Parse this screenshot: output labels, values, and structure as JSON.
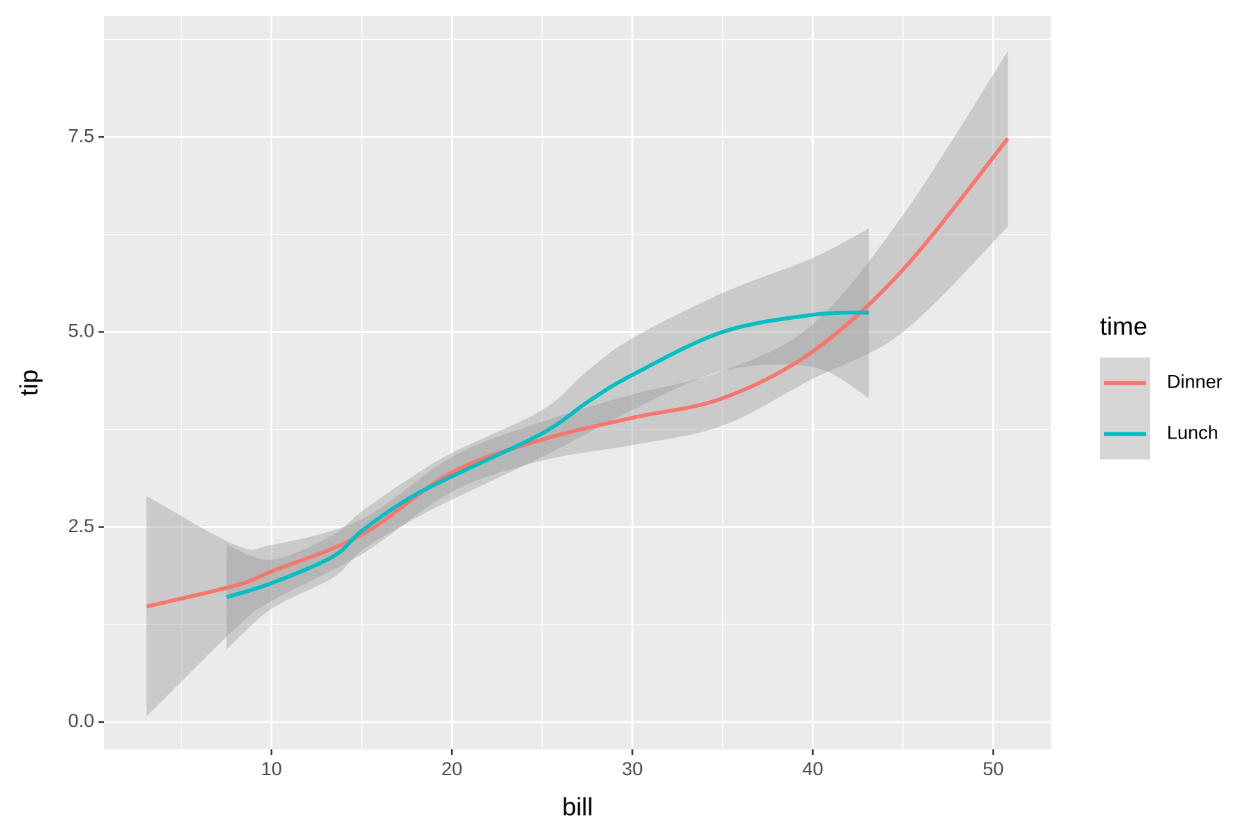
{
  "chart_data": {
    "type": "smooth",
    "x_label": "bill",
    "y_label": "tip",
    "legend_title": "time",
    "legend": "right",
    "grid": true,
    "xlim": [
      0.72,
      53.2
    ],
    "ylim": [
      -0.35,
      9.05
    ],
    "xticks": [
      10,
      20,
      30,
      40,
      50
    ],
    "yticks": [
      {
        "value": 0,
        "label": "0.0"
      },
      2.5,
      {
        "value": 5,
        "label": "5.0"
      },
      7.5
    ],
    "band_color": "#999999",
    "series": [
      {
        "name": "Dinner",
        "color": "#f8766d",
        "x": [
          3.07,
          8,
          10,
          15,
          20,
          25,
          30,
          35,
          40,
          45,
          50.81
        ],
        "values": [
          1.48,
          1.75,
          1.93,
          2.4,
          3.2,
          3.62,
          3.9,
          4.15,
          4.75,
          5.8,
          7.48
        ],
        "lower": [
          0.07,
          1.2,
          1.55,
          2.15,
          2.95,
          3.35,
          3.55,
          3.8,
          4.4,
          5.0,
          6.35
        ],
        "upper": [
          2.9,
          2.27,
          2.27,
          2.6,
          3.4,
          3.85,
          4.2,
          4.5,
          5.1,
          6.5,
          8.6
        ]
      },
      {
        "name": "Lunch",
        "color": "#00bfc4",
        "x": [
          7.51,
          10,
          13.4,
          15,
          17.5,
          20,
          25,
          27.5,
          30,
          35,
          40,
          43.11
        ],
        "values": [
          1.6,
          1.78,
          2.12,
          2.45,
          2.85,
          3.15,
          3.7,
          4.1,
          4.45,
          5.0,
          5.22,
          5.25
        ],
        "lower": [
          0.93,
          1.45,
          1.85,
          2.2,
          2.55,
          2.85,
          3.4,
          3.7,
          4.0,
          4.5,
          4.55,
          4.15
        ],
        "upper": [
          2.28,
          2.08,
          2.4,
          2.7,
          3.1,
          3.45,
          4.0,
          4.5,
          4.92,
          5.5,
          5.95,
          6.33
        ]
      }
    ]
  }
}
